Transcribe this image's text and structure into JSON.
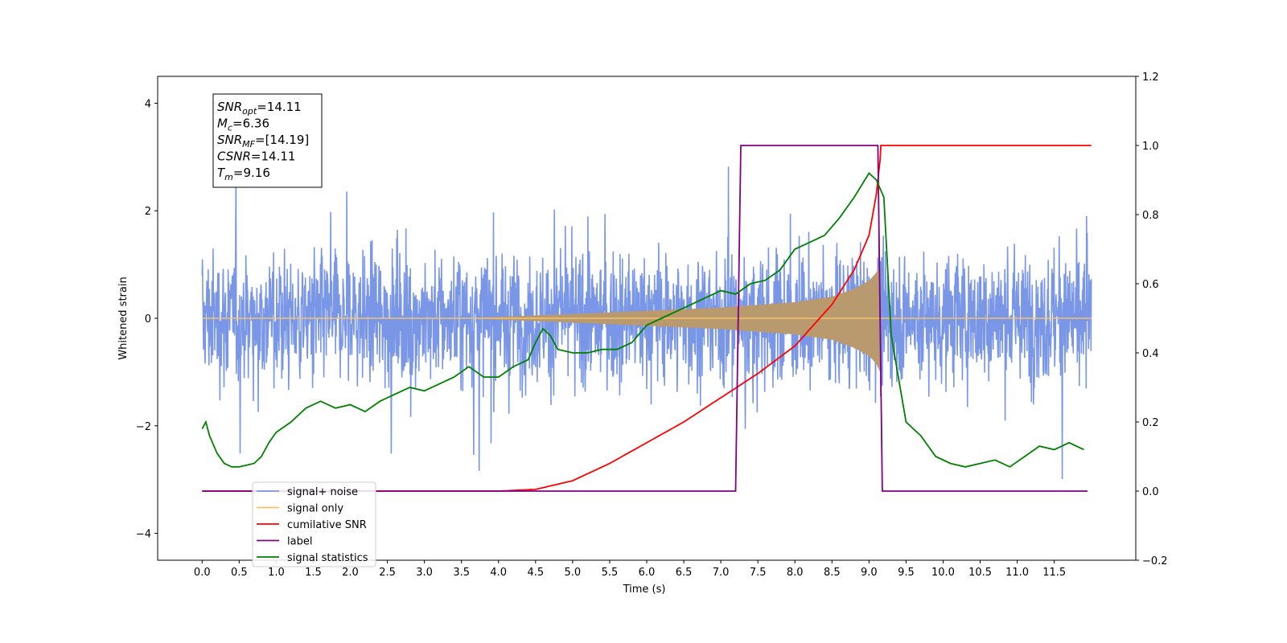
{
  "chart_data": {
    "type": "line",
    "xlabel": "Time (s)",
    "ylabel": "Whitened strain",
    "xlim": [
      -0.6,
      12.6
    ],
    "ylim": [
      -4.5,
      4.5
    ],
    "y2lim": [
      -0.2,
      1.2
    ],
    "x_ticks": [
      "0.0",
      "0.5",
      "1.0",
      "1.5",
      "2.0",
      "2.5",
      "3.0",
      "3.5",
      "4.0",
      "4.5",
      "5.0",
      "5.5",
      "6.0",
      "6.5",
      "7.0",
      "7.5",
      "8.0",
      "8.5",
      "9.0",
      "9.5",
      "10.0",
      "10.5",
      "11.0",
      "11.5"
    ],
    "y_ticks": [
      "4",
      "2",
      "0",
      "−2",
      "−4"
    ],
    "y2_ticks": [
      "1.2",
      "1.0",
      "0.8",
      "0.6",
      "0.4",
      "0.2",
      "0.0",
      "−0.2"
    ],
    "info_box": [
      {
        "base": "SNR",
        "sub": "opt",
        "value": "=14.11"
      },
      {
        "base": "M",
        "sub": "c",
        "value": "=6.36"
      },
      {
        "base": "SNR",
        "sub": "MF",
        "value": "=[14.19]"
      },
      {
        "base": "CSNR",
        "sub": "",
        "value": "=14.11"
      },
      {
        "base": "T",
        "sub": "m",
        "value": "=9.16"
      }
    ],
    "legend_position": "lower-left",
    "series": [
      {
        "name": "signal+ noise",
        "color": "#7a96e6",
        "axis": "left",
        "description_values": "white noise envelope approx ±1.8 with spikes to 4.1; time range 0.0 to 12.0 s"
      },
      {
        "name": "signal only",
        "color": "#f5c26b",
        "axis": "left",
        "envelope_x": [
          3.5,
          5.0,
          6.0,
          7.0,
          8.0,
          8.5,
          8.8,
          9.0,
          9.1,
          9.15,
          9.16
        ],
        "envelope_y": [
          0.0,
          0.08,
          0.14,
          0.2,
          0.3,
          0.4,
          0.55,
          0.7,
          0.85,
          1.0,
          0.0
        ]
      },
      {
        "name": "cumilative SNR",
        "color": "#ff0000",
        "axis": "right",
        "x": [
          0.0,
          4.0,
          4.5,
          5.0,
          5.5,
          6.0,
          6.5,
          7.0,
          7.5,
          8.0,
          8.5,
          8.8,
          9.0,
          9.1,
          9.15,
          9.16,
          12.0
        ],
        "y": [
          0.0,
          0.0,
          0.005,
          0.03,
          0.08,
          0.14,
          0.2,
          0.27,
          0.34,
          0.42,
          0.54,
          0.64,
          0.74,
          0.86,
          0.96,
          1.0,
          1.0
        ]
      },
      {
        "name": "label",
        "color": "#800080",
        "axis": "right",
        "x": [
          0.0,
          7.2,
          7.27,
          9.12,
          9.18,
          11.95
        ],
        "y": [
          0.0,
          0.0,
          1.0,
          1.0,
          0.0,
          0.0
        ]
      },
      {
        "name": "signal statistics",
        "color": "#008000",
        "axis": "right",
        "x": [
          0.0,
          0.05,
          0.1,
          0.2,
          0.3,
          0.4,
          0.5,
          0.6,
          0.7,
          0.8,
          0.9,
          1.0,
          1.2,
          1.4,
          1.6,
          1.8,
          2.0,
          2.2,
          2.4,
          2.6,
          2.8,
          3.0,
          3.2,
          3.4,
          3.6,
          3.8,
          4.0,
          4.2,
          4.4,
          4.5,
          4.6,
          4.7,
          4.8,
          5.0,
          5.2,
          5.4,
          5.6,
          5.8,
          6.0,
          6.2,
          6.4,
          6.6,
          6.8,
          7.0,
          7.2,
          7.4,
          7.6,
          7.8,
          8.0,
          8.2,
          8.4,
          8.6,
          8.8,
          9.0,
          9.1,
          9.2,
          9.3,
          9.5,
          9.7,
          9.9,
          10.1,
          10.3,
          10.5,
          10.7,
          10.9,
          11.1,
          11.3,
          11.5,
          11.7,
          11.9
        ],
        "y": [
          0.18,
          0.2,
          0.16,
          0.11,
          0.08,
          0.07,
          0.07,
          0.075,
          0.08,
          0.1,
          0.14,
          0.17,
          0.2,
          0.24,
          0.26,
          0.24,
          0.25,
          0.23,
          0.26,
          0.28,
          0.3,
          0.29,
          0.31,
          0.33,
          0.36,
          0.33,
          0.33,
          0.36,
          0.38,
          0.43,
          0.47,
          0.45,
          0.41,
          0.4,
          0.4,
          0.41,
          0.41,
          0.43,
          0.48,
          0.5,
          0.52,
          0.54,
          0.56,
          0.58,
          0.57,
          0.6,
          0.61,
          0.64,
          0.7,
          0.72,
          0.74,
          0.79,
          0.85,
          0.92,
          0.9,
          0.85,
          0.45,
          0.2,
          0.16,
          0.1,
          0.08,
          0.07,
          0.08,
          0.09,
          0.07,
          0.1,
          0.13,
          0.12,
          0.14,
          0.12
        ]
      }
    ]
  }
}
